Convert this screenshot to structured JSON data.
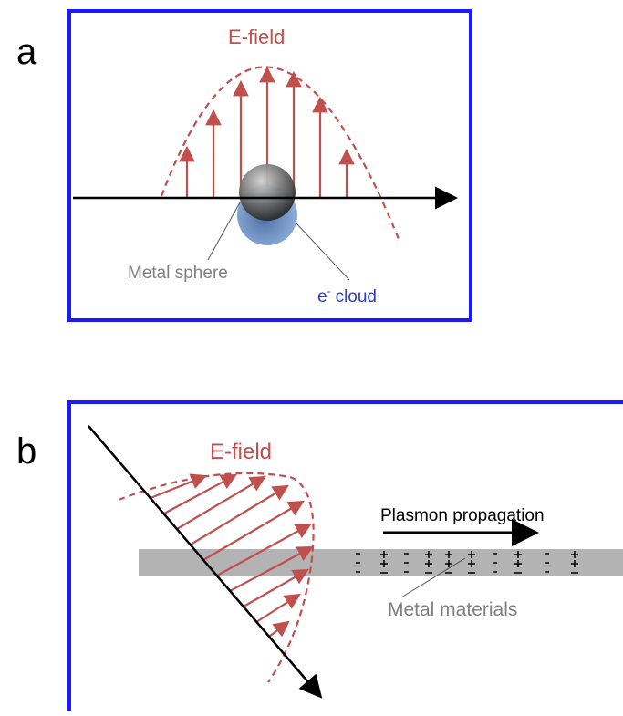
{
  "panel_a": {
    "label": "a",
    "field_label": "E-field",
    "sphere_label": "Metal sphere",
    "cloud_label": {
      "e": "e",
      "superscript": "-",
      "rest": "cloud"
    }
  },
  "panel_b": {
    "label": "b",
    "field_label": "E-field",
    "propagation_label": "Plasmon propagation",
    "metal_label": "Metal materials"
  }
}
